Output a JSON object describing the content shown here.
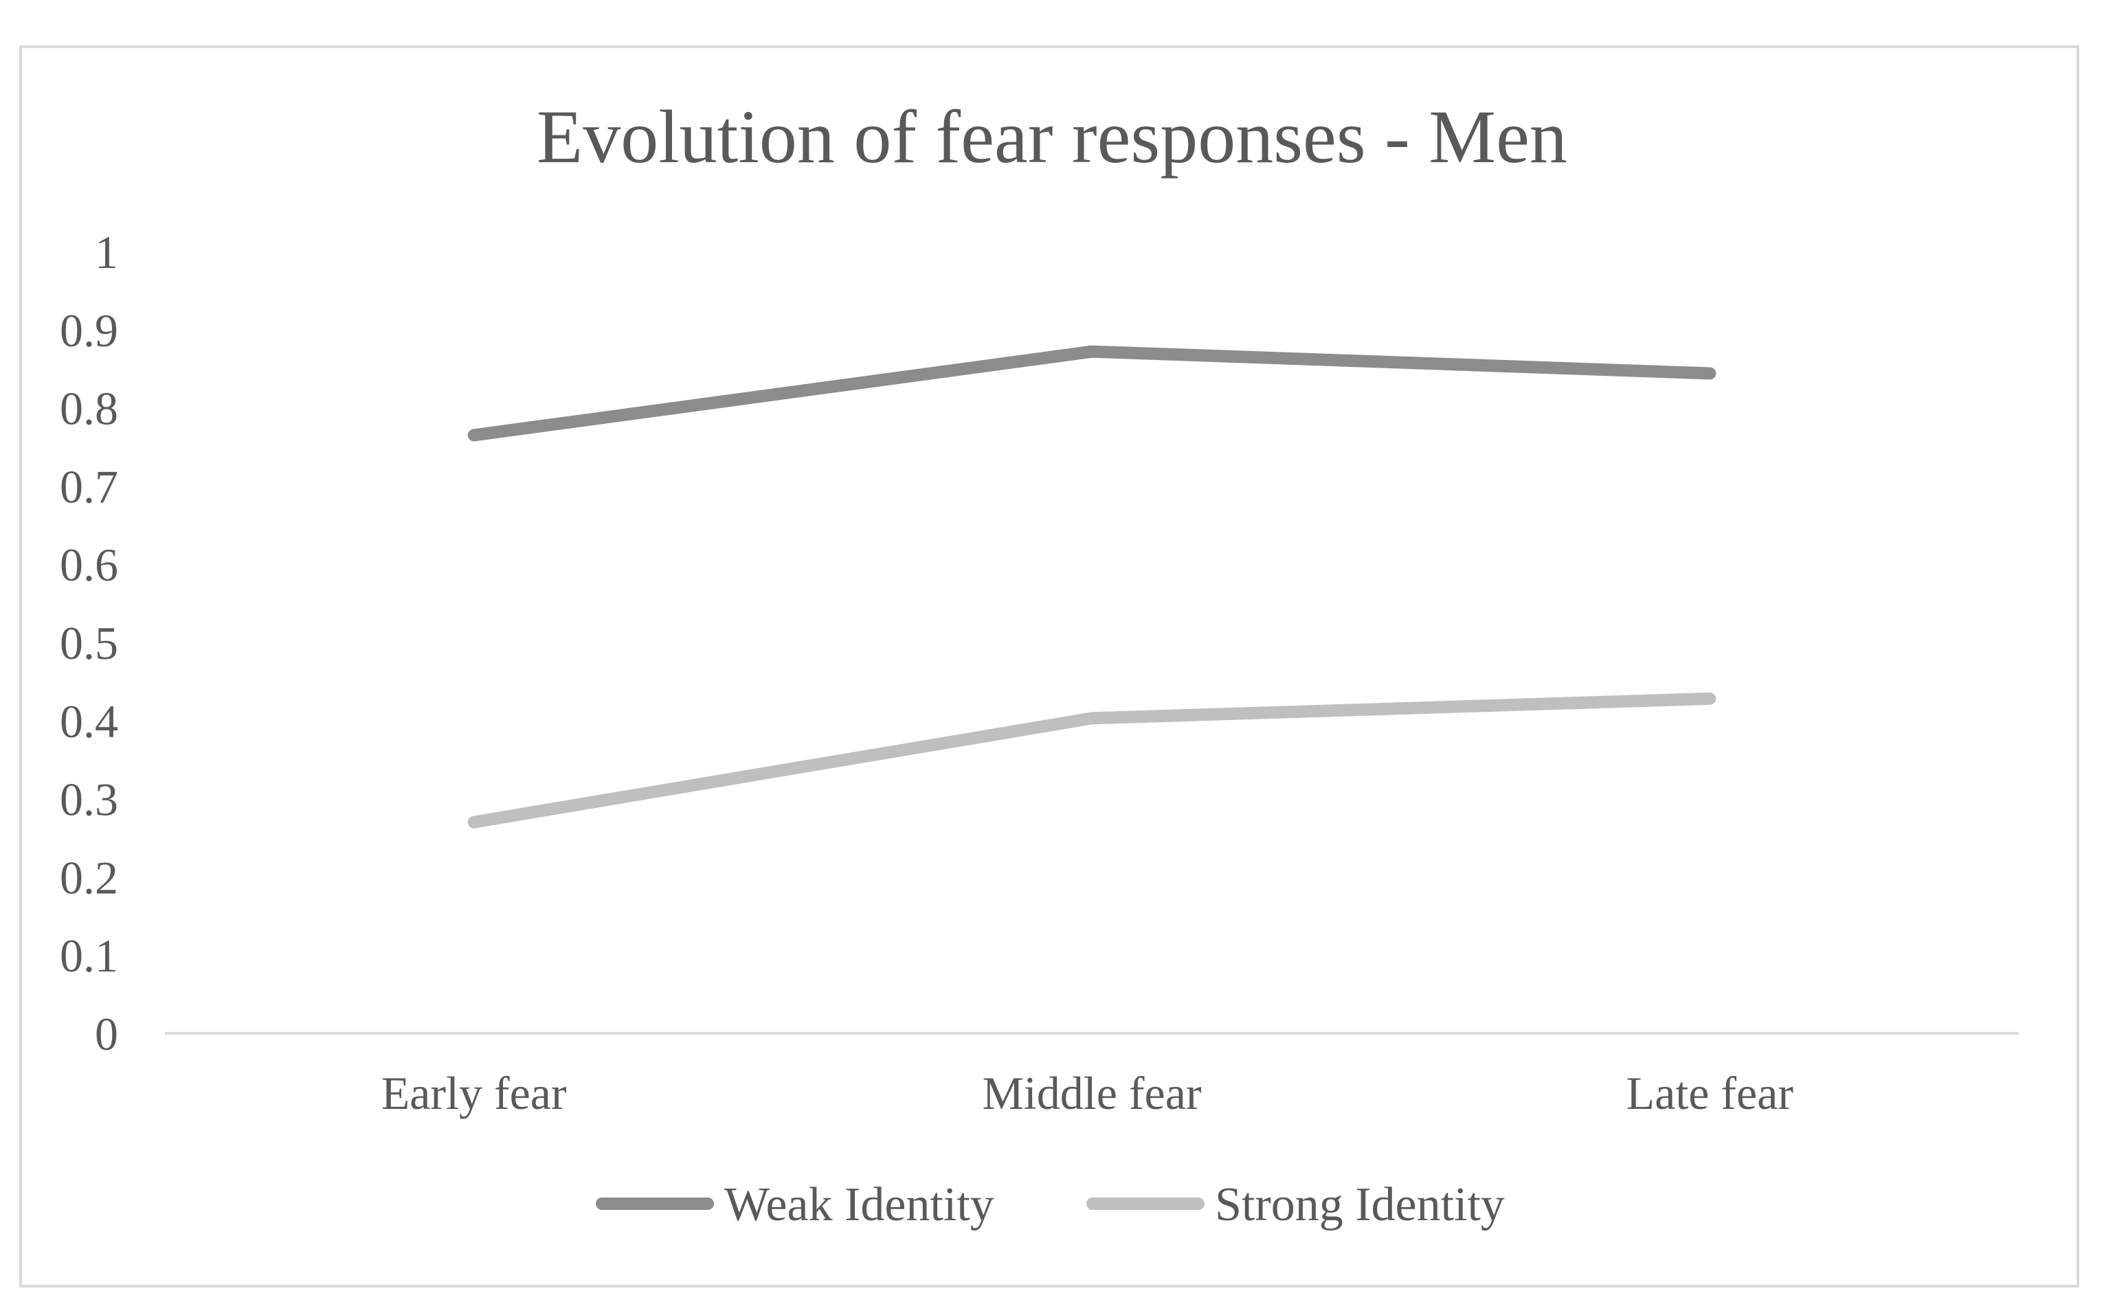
{
  "chart_data": {
    "type": "line",
    "title": "Evolution of fear responses - Men",
    "xlabel": "",
    "ylabel": "",
    "categories": [
      "Early fear",
      "Middle fear",
      "Late fear"
    ],
    "ylim": [
      0,
      1
    ],
    "yticks": [
      "0",
      "0.1",
      "0.2",
      "0.3",
      "0.4",
      "0.5",
      "0.6",
      "0.7",
      "0.8",
      "0.9",
      "1"
    ],
    "grid": false,
    "legend_position": "bottom",
    "series": [
      {
        "name": "Weak Identity",
        "values": [
          0.765,
          0.872,
          0.844
        ],
        "color": "#8c8c8c"
      },
      {
        "name": "Strong Identity",
        "values": [
          0.27,
          0.403,
          0.428
        ],
        "color": "#bfbfbf"
      }
    ],
    "axis_color": "#d9d9d9",
    "text_color": "#595959"
  }
}
